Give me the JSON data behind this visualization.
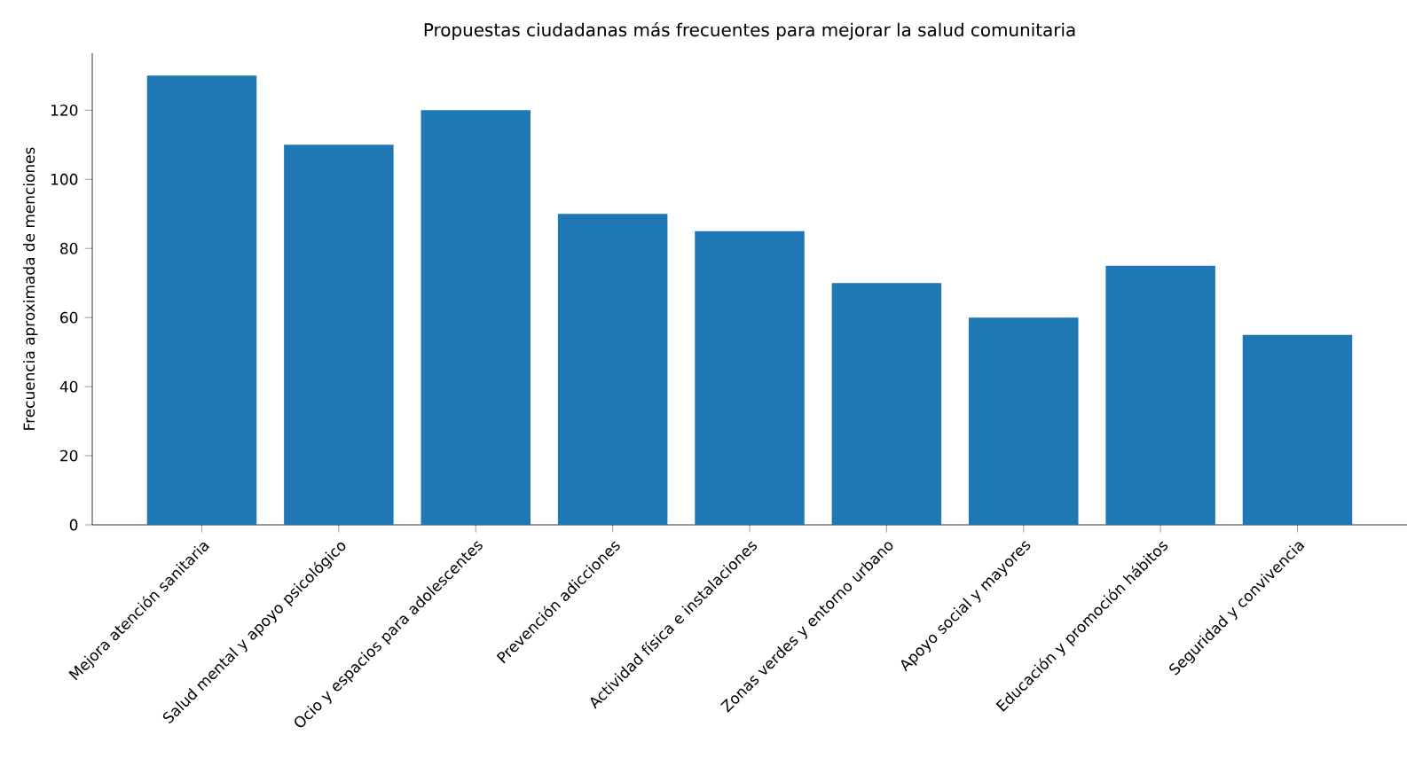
{
  "chart_data": {
    "type": "bar",
    "title": "Propuestas ciudadanas más frecuentes para mejorar la salud comunitaria",
    "ylabel": "Frecuencia aproximada de menciones",
    "categories": [
      "Mejora atención sanitaria",
      "Salud mental y apoyo psicológico",
      "Ocio y espacios para adolescentes",
      "Prevención adicciones",
      "Actividad física e instalaciones",
      "Zonas verdes y entorno urbano",
      "Apoyo social y mayores",
      "Educación y promoción hábitos",
      "Seguridad y convivencia"
    ],
    "values": [
      130,
      110,
      120,
      90,
      85,
      70,
      60,
      75,
      55
    ],
    "color": "#1f77b4",
    "ylim": [
      0,
      136.5
    ],
    "yticks": [
      0,
      20,
      40,
      60,
      80,
      100,
      120
    ],
    "grid": false
  }
}
